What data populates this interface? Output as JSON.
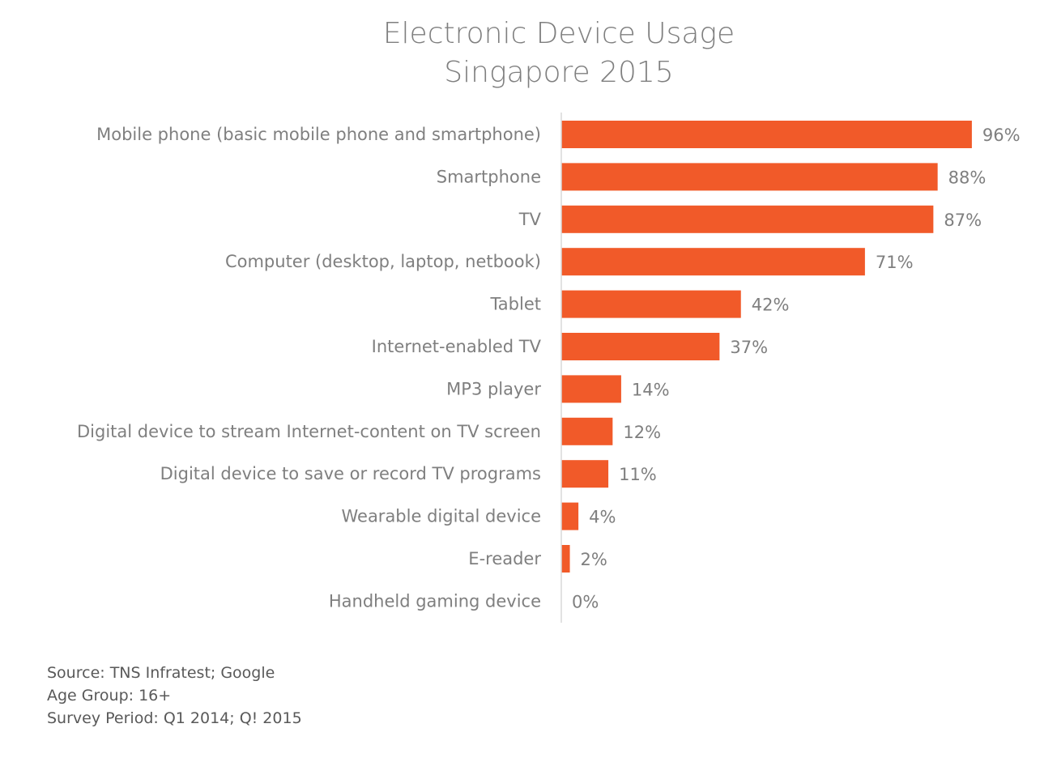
{
  "chart_data": {
    "type": "bar",
    "orientation": "horizontal",
    "title": "Electronic Device Usage",
    "subtitle": "Singapore 2015",
    "categories": [
      "Mobile phone (basic mobile phone and smartphone)",
      "Smartphone",
      "TV",
      "Computer (desktop, laptop, netbook)",
      "Tablet",
      "Internet-enabled TV",
      "MP3 player",
      "Digital device to stream Internet-content on TV screen",
      "Digital device to save or record TV programs",
      "Wearable digital device",
      "E-reader",
      "Handheld gaming device"
    ],
    "values": [
      96,
      88,
      87,
      71,
      42,
      37,
      14,
      12,
      11,
      4,
      2,
      0
    ],
    "value_labels": [
      "96%",
      "88%",
      "87%",
      "71%",
      "42%",
      "37%",
      "14%",
      "12%",
      "11%",
      "4%",
      "2%",
      "0%"
    ],
    "xlim": [
      0,
      100
    ],
    "grid": false,
    "bar_color": "#f15a29",
    "axis_color": "#d9d9d9"
  },
  "footnotes": {
    "source": "Source: TNS Infratest; Google",
    "age_group": "Age Group: 16+",
    "survey_period": "Survey Period: Q1 2014; Q! 2015"
  }
}
